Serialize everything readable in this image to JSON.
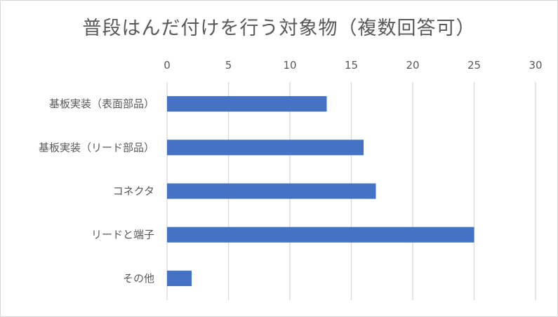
{
  "chart_data": {
    "type": "bar",
    "orientation": "horizontal",
    "title": "普段はんだ付けを行う対象物（複数回答可）",
    "categories": [
      "基板実装（表面部品）",
      "基板実装（リード部品）",
      "コネクタ",
      "リードと端子",
      "その他"
    ],
    "values": [
      13,
      16,
      17,
      25,
      2
    ],
    "xlim": [
      0,
      30
    ],
    "xticks": [
      0,
      5,
      10,
      15,
      20,
      25,
      30
    ],
    "x_axis_position": "top",
    "grid": true,
    "bar_color": "#4472c4",
    "grid_color": "#d9d9d9",
    "text_color": "#595959"
  }
}
